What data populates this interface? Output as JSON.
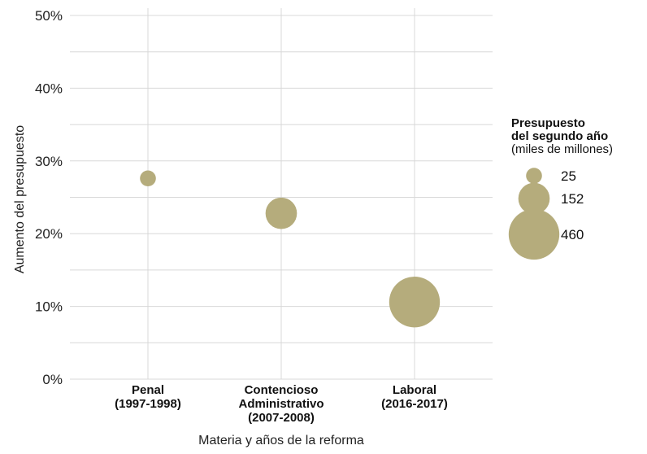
{
  "chart_data": {
    "type": "scatter",
    "title": "",
    "xlabel": "Materia y años de la reforma",
    "ylabel": "Aumento del presupuesto",
    "ylim": [
      0,
      50
    ],
    "y_ticks": [
      "0%",
      "10%",
      "20%",
      "30%",
      "40%",
      "50%"
    ],
    "grid": true,
    "categories": [
      [
        "Penal",
        "(1997-1998)"
      ],
      [
        "Contencioso",
        "Administrativo",
        "(2007-2008)"
      ],
      [
        "Laboral",
        "(2016-2017)"
      ]
    ],
    "points": [
      {
        "category": 0,
        "y": 27.6,
        "size": 25
      },
      {
        "category": 1,
        "y": 22.8,
        "size": 152
      },
      {
        "category": 2,
        "y": 10.6,
        "size": 460
      }
    ],
    "point_color": "#b5ac7c",
    "legend": {
      "placement": "right",
      "title_lines": [
        "Presupuesto",
        "del segundo año"
      ],
      "subtitle": "(miles de millones)",
      "entries": [
        {
          "label": "25",
          "size": 25
        },
        {
          "label": "152",
          "size": 152
        },
        {
          "label": "460",
          "size": 460
        }
      ]
    }
  }
}
